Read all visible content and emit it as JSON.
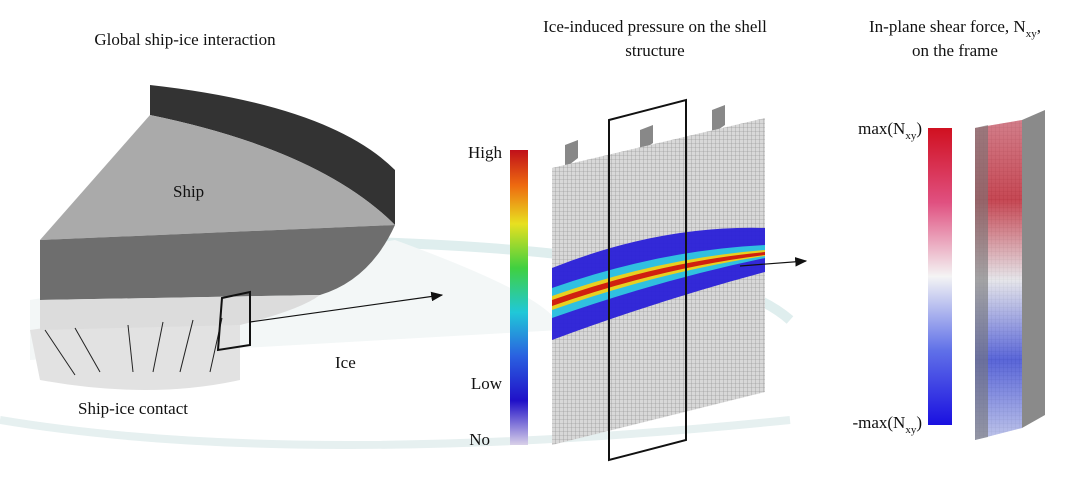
{
  "panels": [
    {
      "title_lines": [
        "Global ship-ice interaction"
      ],
      "labels": {
        "ship": "Ship",
        "ice": "Ice",
        "contact": "Ship-ice contact"
      }
    },
    {
      "title_lines": [
        "Ice-induced pressure on the shell",
        "structure"
      ],
      "scale": {
        "high": "High",
        "low": "Low",
        "no": "No"
      }
    },
    {
      "title_line1": {
        "text": "In-plane shear force, N",
        "sub": "xy",
        "end": ","
      },
      "title_line2": "on the frame",
      "scale": {
        "max": {
          "text": "max(N",
          "sub": "xy",
          "end": ")"
        },
        "min": {
          "text": "-max(N",
          "sub": "xy",
          "end": ")"
        }
      }
    }
  ]
}
